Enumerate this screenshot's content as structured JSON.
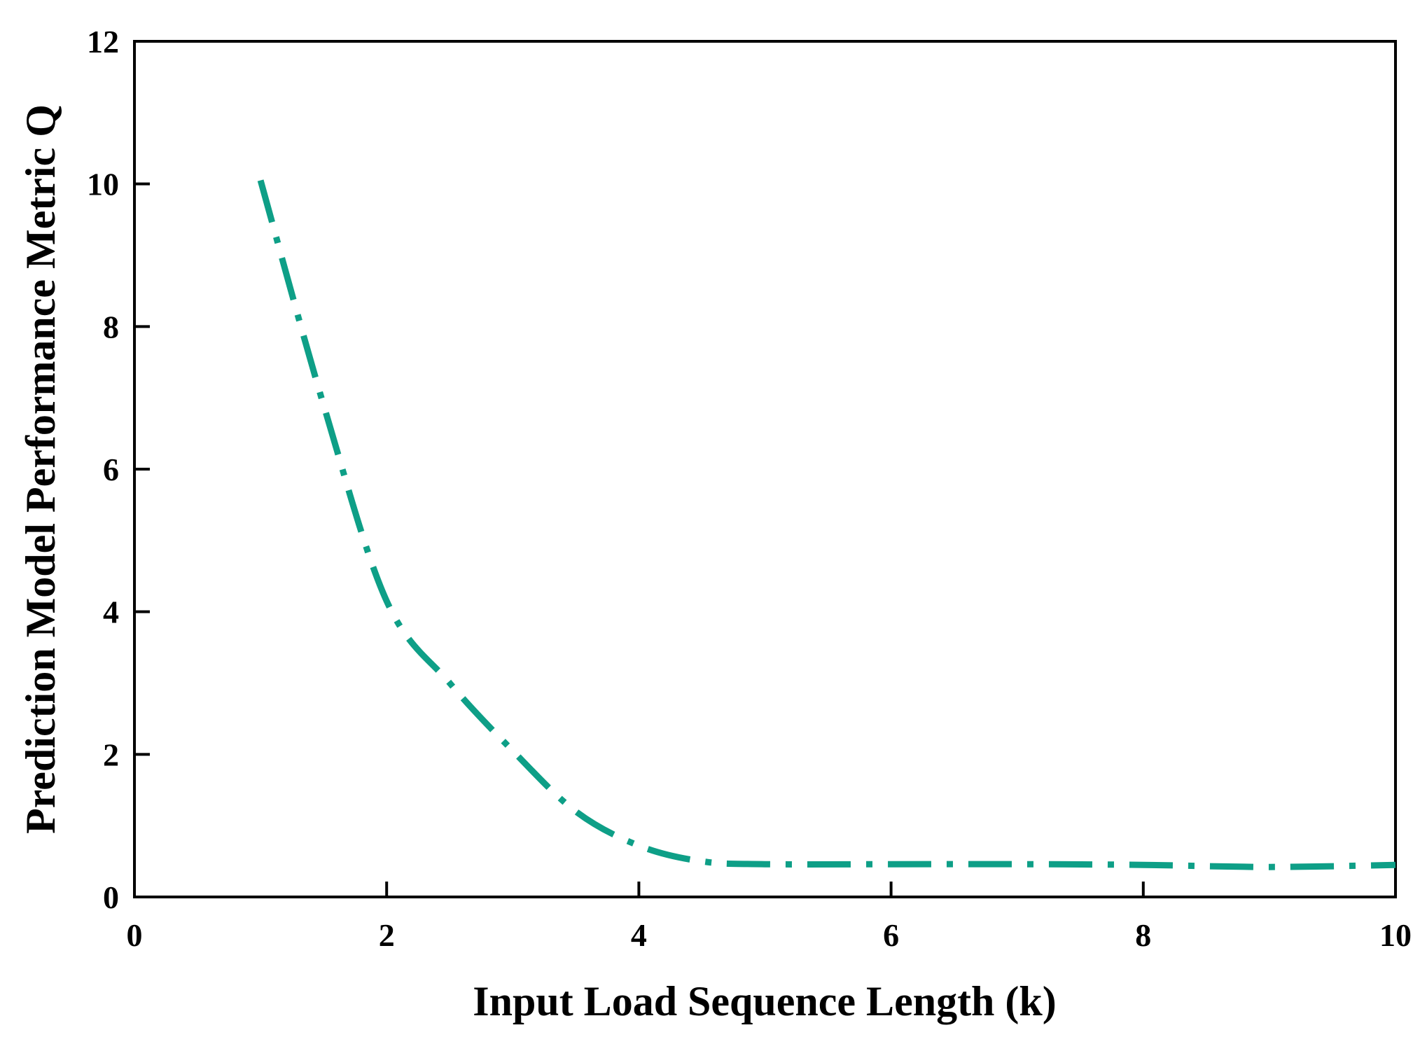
{
  "chart_data": {
    "type": "line",
    "xlabel": "Input Load Sequence Length (k)",
    "ylabel": "Prediction Model Performance Metric Q",
    "xlim": [
      0,
      10
    ],
    "ylim": [
      0,
      12
    ],
    "x_ticks": [
      0,
      2,
      4,
      6,
      8,
      10
    ],
    "y_ticks": [
      0,
      2,
      4,
      6,
      8,
      10,
      12
    ],
    "x_tick_labels": [
      "0",
      "2",
      "4",
      "6",
      "8",
      "10"
    ],
    "y_tick_labels": [
      "0",
      "2",
      "4",
      "6",
      "8",
      "10",
      "12"
    ],
    "grid": false,
    "line_style": "dash-dot",
    "line_color": "#0e9f87",
    "series": [
      {
        "x": [
          1.0,
          1.5,
          2.0,
          2.5,
          3.0,
          3.5,
          4.0,
          4.5,
          5.0,
          6.0,
          7.0,
          8.0,
          9.0,
          10.0
        ],
        "y": [
          10.05,
          6.9,
          4.15,
          3.0,
          2.05,
          1.2,
          0.72,
          0.5,
          0.46,
          0.46,
          0.46,
          0.45,
          0.42,
          0.45
        ]
      }
    ]
  }
}
